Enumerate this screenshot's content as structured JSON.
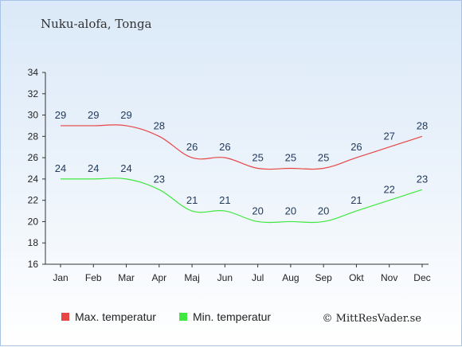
{
  "header": {
    "title": "Nuku-alofa, Tonga"
  },
  "credit": "© MittResVader.se",
  "chart_data": {
    "type": "line",
    "title": "Nuku-alofa, Tonga",
    "categories": [
      "Jan",
      "Feb",
      "Mar",
      "Apr",
      "Maj",
      "Jun",
      "Jul",
      "Aug",
      "Sep",
      "Okt",
      "Nov",
      "Dec"
    ],
    "series": [
      {
        "name": "Max. temperatur",
        "color": "#e84545",
        "values": [
          29,
          29,
          29,
          28,
          26,
          26,
          25,
          25,
          25,
          26,
          27,
          28
        ]
      },
      {
        "name": "Min. temperatur",
        "color": "#3ee83e",
        "values": [
          24,
          24,
          24,
          23,
          21,
          21,
          20,
          20,
          20,
          21,
          22,
          23
        ]
      }
    ],
    "yticks": [
      16,
      18,
      20,
      22,
      24,
      26,
      28,
      30,
      32,
      34
    ],
    "ylim": [
      16,
      34
    ],
    "grid": false,
    "legend_position": "bottom"
  }
}
